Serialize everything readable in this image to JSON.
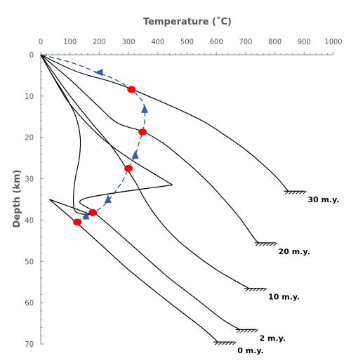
{
  "chart_data": {
    "type": "line",
    "x_axis_title": "Temperature (˚C)",
    "y_axis_title": "Depth (km)",
    "x_axis_position": "top",
    "y_axis_inverted": true,
    "xlim": [
      0,
      1000
    ],
    "ylim": [
      0,
      70
    ],
    "x_ticks": [
      0,
      100,
      200,
      300,
      400,
      500,
      600,
      700,
      800,
      900,
      1000
    ],
    "y_ticks": [
      0,
      10,
      20,
      30,
      40,
      50,
      60,
      70
    ],
    "grid": false,
    "legend": "none; curves labelled at their ends",
    "series": [
      {
        "name": "30 m.y.",
        "color": "#000000",
        "points": [
          [
            0,
            0
          ],
          [
            120,
            4
          ],
          [
            240,
            6.5
          ],
          [
            310,
            8.3
          ],
          [
            400,
            11
          ],
          [
            480,
            13.5
          ],
          [
            560,
            16.3
          ],
          [
            630,
            19.5
          ],
          [
            700,
            23
          ],
          [
            760,
            26.6
          ],
          [
            810,
            30
          ],
          [
            845,
            33
          ]
        ]
      },
      {
        "name": "20 m.y.",
        "color": "#000000",
        "points": [
          [
            0,
            0
          ],
          [
            100,
            6
          ],
          [
            190,
            12
          ],
          [
            262,
            16.5
          ],
          [
            350,
            18.6
          ],
          [
            420,
            21.5
          ],
          [
            490,
            25.5
          ],
          [
            560,
            30
          ],
          [
            620,
            34.5
          ],
          [
            680,
            39.5
          ],
          [
            730,
            44.5
          ],
          [
            745,
            45.5
          ]
        ]
      },
      {
        "name": "10 m.y.",
        "color": "#000000",
        "points": [
          [
            0,
            0
          ],
          [
            90,
            9
          ],
          [
            180,
            17
          ],
          [
            240,
            22
          ],
          [
            293,
            27.5
          ],
          [
            325,
            31
          ],
          [
            360,
            35.5
          ],
          [
            410,
            40.5
          ],
          [
            470,
            45
          ],
          [
            540,
            49
          ],
          [
            600,
            52
          ],
          [
            660,
            54.5
          ],
          [
            710,
            56.5
          ]
        ]
      },
      {
        "name": "2 m.y.",
        "color": "#000000",
        "points": [
          [
            0,
            0
          ],
          [
            40,
            5
          ],
          [
            90,
            11
          ],
          [
            150,
            16
          ],
          [
            215,
            20.5
          ],
          [
            300,
            25
          ],
          [
            380,
            28.5
          ],
          [
            450,
            31.5
          ],
          [
            150,
            34.8
          ],
          [
            178,
            37.8
          ],
          [
            230,
            41
          ],
          [
            310,
            46
          ],
          [
            430,
            53.5
          ],
          [
            530,
            59
          ],
          [
            620,
            64
          ],
          [
            680,
            66.5
          ]
        ]
      },
      {
        "name": "0 m.y.",
        "color": "#000000",
        "points": [
          [
            0,
            0
          ],
          [
            40,
            5
          ],
          [
            85,
            10
          ],
          [
            120,
            15
          ],
          [
            135,
            20
          ],
          [
            132,
            25
          ],
          [
            118,
            30
          ],
          [
            112,
            35
          ],
          [
            120,
            38
          ],
          [
            165,
            38.5
          ],
          [
            30,
            35
          ],
          [
            160,
            43
          ],
          [
            300,
            52
          ],
          [
            440,
            60
          ],
          [
            550,
            66
          ],
          [
            605,
            69.5
          ]
        ]
      },
      {
        "name": "P-T path",
        "color": "#1F4E99",
        "style": "dashed",
        "points": [
          [
            125,
            40.5
          ],
          [
            150,
            39
          ],
          [
            178,
            38.2
          ],
          [
            215,
            36.5
          ],
          [
            250,
            33.5
          ],
          [
            280,
            30.5
          ],
          [
            300,
            27.5
          ],
          [
            322,
            24.5
          ],
          [
            335,
            21.5
          ],
          [
            348,
            18.7
          ],
          [
            355,
            16
          ],
          [
            355,
            13
          ],
          [
            345,
            11
          ],
          [
            310,
            8.4
          ],
          [
            280,
            7
          ],
          [
            240,
            5.5
          ],
          [
            190,
            4.2
          ],
          [
            130,
            2.5
          ],
          [
            60,
            1
          ],
          [
            0,
            0
          ]
        ]
      }
    ],
    "markers": [
      {
        "x": 310,
        "y": 8.4
      },
      {
        "x": 348,
        "y": 18.7
      },
      {
        "x": 300,
        "y": 27.5
      },
      {
        "x": 178,
        "y": 38.2
      },
      {
        "x": 125,
        "y": 40.5
      }
    ],
    "arrowheads": [
      {
        "x": 200,
        "y": 4.3,
        "direction": "left"
      },
      {
        "x": 355,
        "y": 13.2,
        "direction": "up"
      },
      {
        "x": 323,
        "y": 24.3,
        "direction": "up"
      },
      {
        "x": 230,
        "y": 35,
        "direction": "up"
      },
      {
        "x": 155,
        "y": 39,
        "direction": "up"
      }
    ],
    "marker_color": "#FF0000",
    "arrow_color": "#3A5BA8"
  }
}
